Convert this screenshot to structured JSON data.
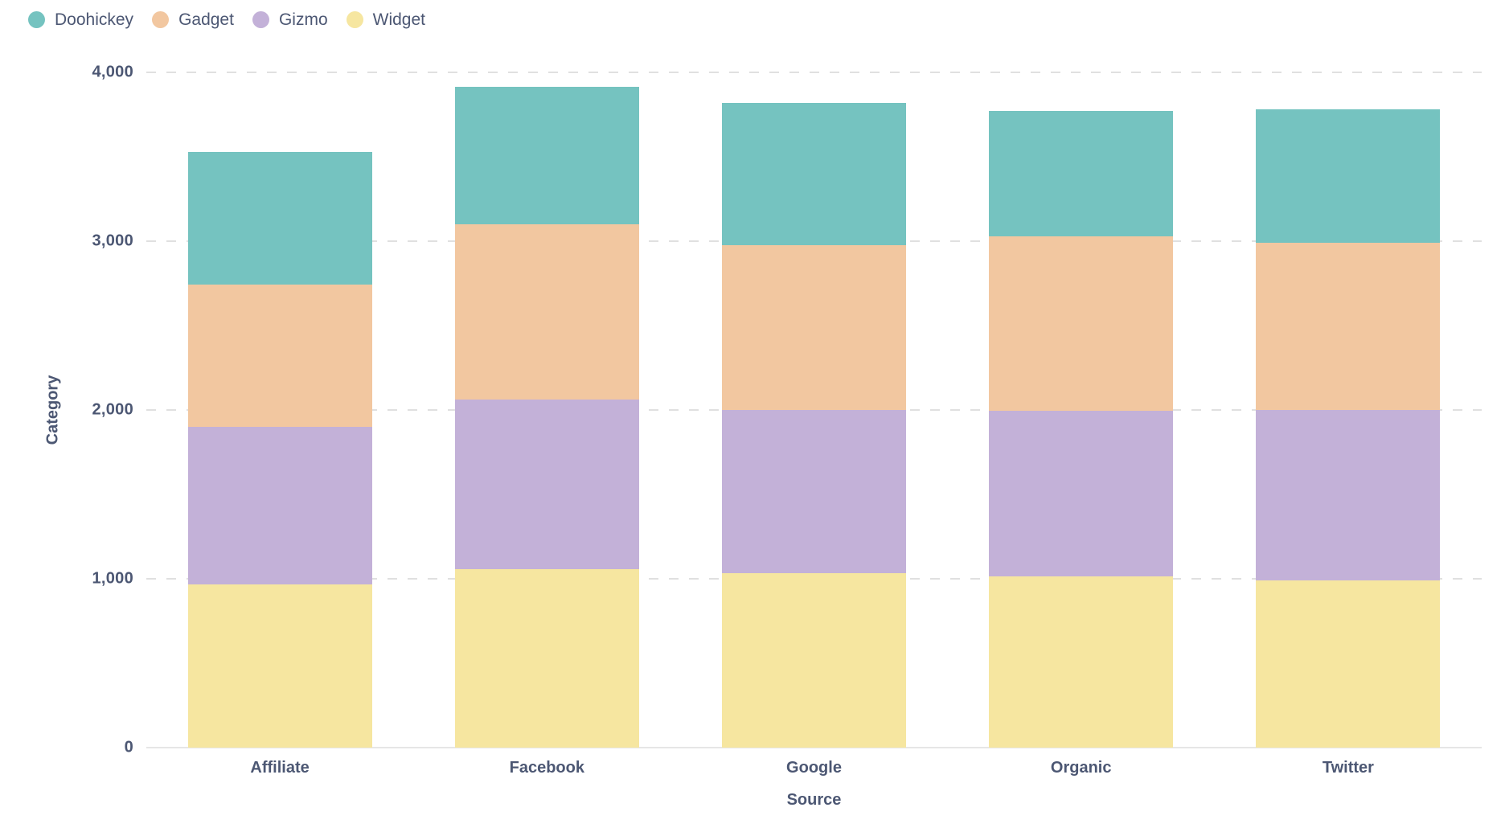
{
  "chart_data": {
    "type": "bar",
    "stacked": true,
    "title": "",
    "xlabel": "Source",
    "ylabel": "Category",
    "categories": [
      "Affiliate",
      "Facebook",
      "Google",
      "Organic",
      "Twitter"
    ],
    "series": [
      {
        "name": "Doohickey",
        "color": "#75C3C0",
        "values": [
          785,
          815,
          845,
          740,
          790
        ]
      },
      {
        "name": "Gadget",
        "color": "#F2C7A0",
        "values": [
          845,
          1040,
          975,
          1035,
          990
        ]
      },
      {
        "name": "Gizmo",
        "color": "#C3B1D8",
        "values": [
          935,
          1005,
          965,
          980,
          1010
        ]
      },
      {
        "name": "Widget",
        "color": "#F6E6A0",
        "values": [
          965,
          1055,
          1035,
          1015,
          990
        ]
      }
    ],
    "stack_totals": [
      3530,
      3915,
      3820,
      3770,
      3780
    ],
    "stack_order_note": "legend order Doohickey,Gadget,Gizmo,Widget; stacked bottom-to-top as Widget,Gizmo,Gadget,Doohickey",
    "ylim": [
      0,
      4000
    ],
    "yticks": [
      {
        "value": 0,
        "label": "0"
      },
      {
        "value": 1000,
        "label": "1,000"
      },
      {
        "value": 2000,
        "label": "2,000"
      },
      {
        "value": 3000,
        "label": "3,000"
      },
      {
        "value": 4000,
        "label": "4,000"
      }
    ],
    "grid": "horizontal dashed",
    "legend_position": "top-left",
    "colors": {
      "axis_text": "#4C5773",
      "gridline": "#E0E0E0",
      "baseline": "#E6E6E6",
      "background": "#FFFFFF"
    }
  }
}
